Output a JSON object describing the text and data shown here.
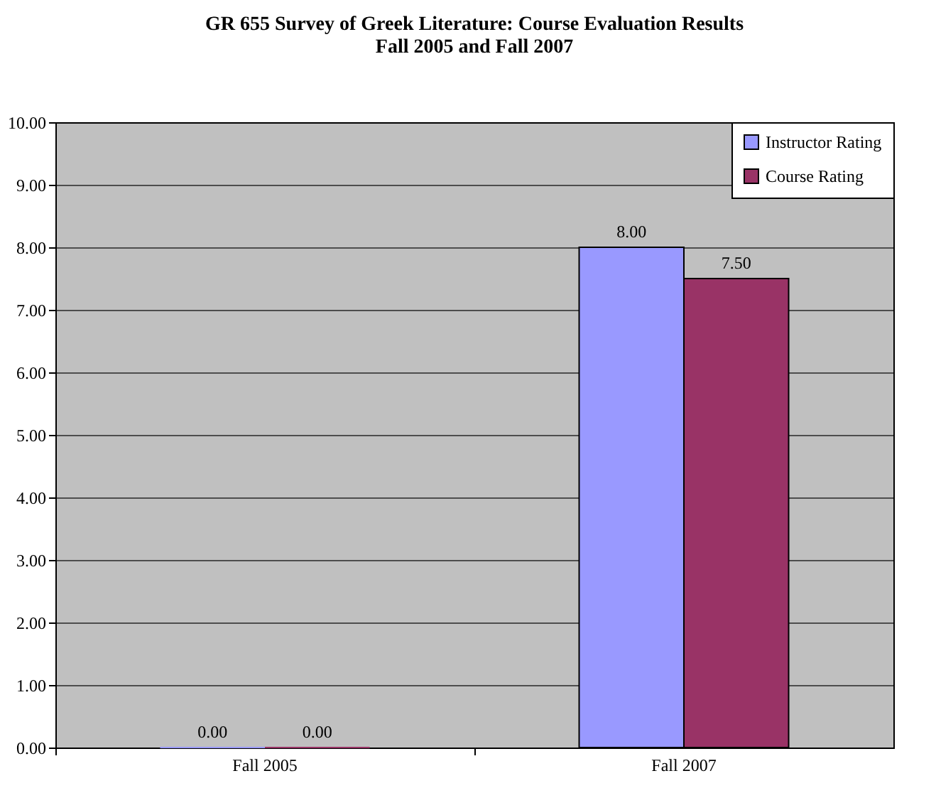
{
  "chart_data": {
    "type": "bar",
    "title": "GR 655 Survey of Greek Literature: Course Evaluation Results\nFall 2005 and Fall 2007",
    "categories": [
      "Fall 2005",
      "Fall 2007"
    ],
    "series": [
      {
        "name": "Instructor Rating",
        "color": "#9999ff",
        "values": [
          0,
          8
        ],
        "value_labels": [
          "0.00",
          "8.00"
        ]
      },
      {
        "name": "Course Rating",
        "color": "#993366",
        "values": [
          0,
          7.5
        ],
        "value_labels": [
          "0.00",
          "7.50"
        ]
      }
    ],
    "ylim": [
      0,
      10
    ],
    "yticks": [
      {
        "value": 0,
        "label": "0.00"
      },
      {
        "value": 1,
        "label": "1.00"
      },
      {
        "value": 2,
        "label": "2.00"
      },
      {
        "value": 3,
        "label": "3.00"
      },
      {
        "value": 4,
        "label": "4.00"
      },
      {
        "value": 5,
        "label": "5.00"
      },
      {
        "value": 6,
        "label": "6.00"
      },
      {
        "value": 7,
        "label": "7.00"
      },
      {
        "value": 8,
        "label": "8.00"
      },
      {
        "value": 9,
        "label": "9.00"
      },
      {
        "value": 10,
        "label": "10.00"
      }
    ],
    "grid": "y",
    "legend": "top right"
  }
}
